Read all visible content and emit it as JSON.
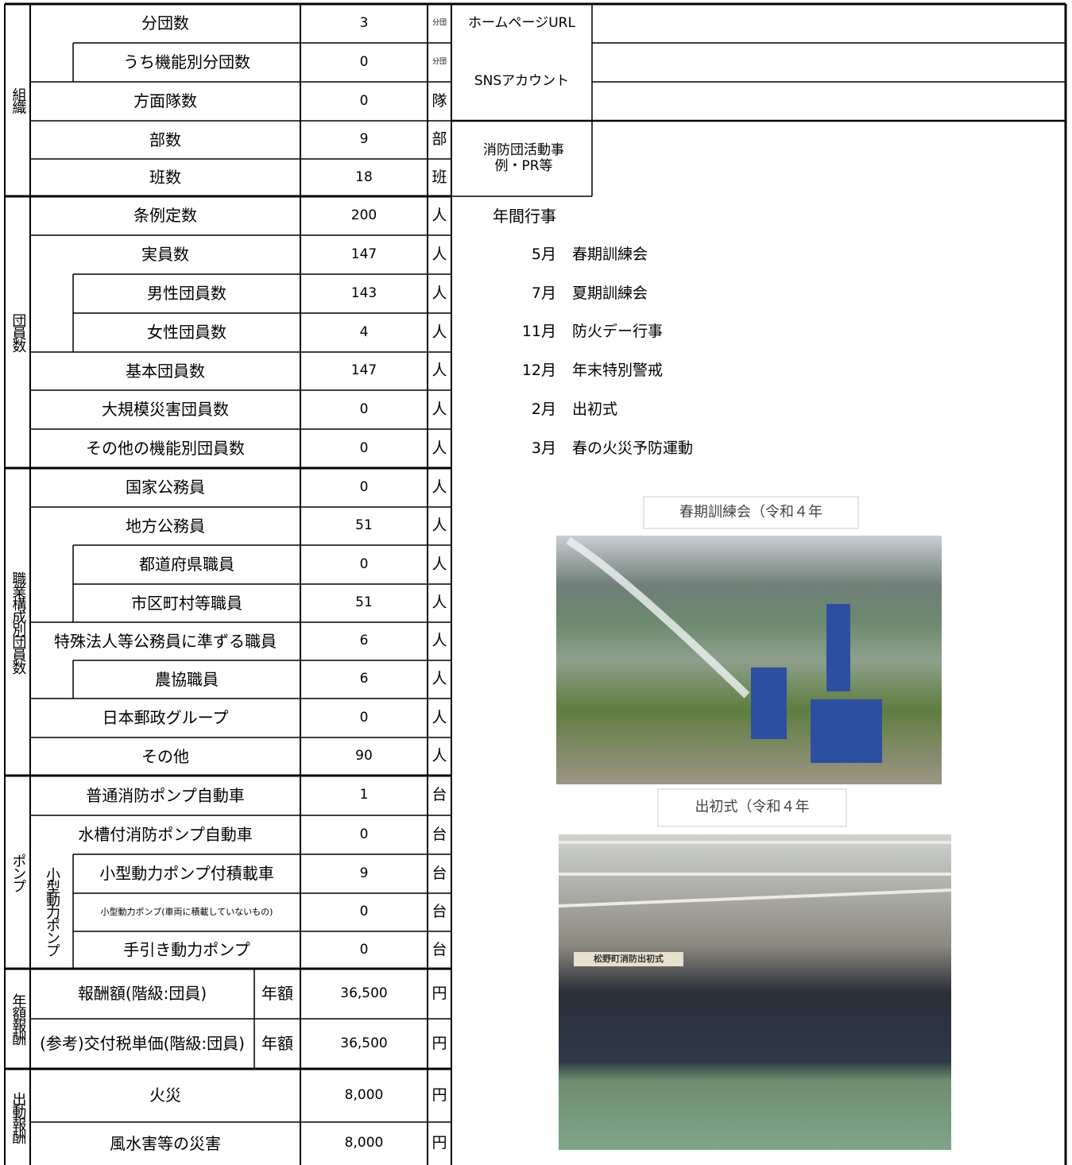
{
  "sections": [
    {
      "label": "組織",
      "rows": [
        {
          "label": "分団数",
          "value": "3",
          "unit": "分団"
        },
        {
          "label": "うち機能別分団数",
          "value": "0",
          "unit": "分団"
        },
        {
          "label": "方面隊数",
          "value": "0",
          "unit": "隊"
        },
        {
          "label": "部数",
          "value": "9",
          "unit": "部"
        },
        {
          "label": "班数",
          "value": "18",
          "unit": "班"
        }
      ]
    },
    {
      "label": "団員数",
      "rows": [
        {
          "label": "条例定数",
          "value": "200",
          "unit": "人"
        },
        {
          "label": "実員数",
          "value": "147",
          "unit": "人"
        },
        {
          "label": "男性団員数",
          "value": "143",
          "unit": "人"
        },
        {
          "label": "女性団員数",
          "value": "4",
          "unit": "人"
        },
        {
          "label": "基本団員数",
          "value": "147",
          "unit": "人"
        },
        {
          "label": "大規模災害団員数",
          "value": "0",
          "unit": "人"
        },
        {
          "label": "その他の機能別団員数",
          "value": "0",
          "unit": "人"
        }
      ]
    },
    {
      "label": "職業構成別団員数",
      "rows": [
        {
          "label": "国家公務員",
          "value": "0",
          "unit": "人"
        },
        {
          "label": "地方公務員",
          "value": "51",
          "unit": "人"
        },
        {
          "label": "都道府県職員",
          "value": "0",
          "unit": "人"
        },
        {
          "label": "市区町村等職員",
          "value": "51",
          "unit": "人"
        },
        {
          "label": "特殊法人等公務員に準ずる職員",
          "value": "6",
          "unit": "人"
        },
        {
          "label": "農協職員",
          "value": "6",
          "unit": "人"
        },
        {
          "label": "日本郵政グループ",
          "value": "0",
          "unit": "人"
        },
        {
          "label": "その他",
          "value": "90",
          "unit": "人"
        }
      ]
    },
    {
      "label": "ポンプ",
      "sub_label": "小型動力ポンプ",
      "rows": [
        {
          "label": "普通消防ポンプ自動車",
          "value": "1",
          "unit": "台"
        },
        {
          "label": "水槽付消防ポンプ自動車",
          "value": "0",
          "unit": "台"
        },
        {
          "label": "小型動力ポンプ付積載車",
          "value": "9",
          "unit": "台"
        },
        {
          "label": "小型動力ポンプ(車両に積載していないもの)",
          "value": "0",
          "unit": "台"
        },
        {
          "label": "手引き動力ポンプ",
          "value": "0",
          "unit": "台"
        }
      ]
    },
    {
      "label": "年額報酬",
      "rows": [
        {
          "label": "報酬額(階級:団員)",
          "period": "年額",
          "value": "36,500",
          "unit": "円"
        },
        {
          "label": "(参考)交付税単価(階級:団員)",
          "period": "年額",
          "value": "36,500",
          "unit": "円"
        }
      ]
    },
    {
      "label": "出動報酬",
      "rows": [
        {
          "label": "火災",
          "value": "8,000",
          "unit": "円"
        },
        {
          "label": "風水害等の災害",
          "value": "8,000",
          "unit": "円"
        }
      ]
    }
  ],
  "links": {
    "homepage_label": "ホームページURL",
    "sns_label": "SNSアカウント",
    "pr_label": "消防団活動事例・PR等"
  },
  "annual_events": {
    "title": "年間行事",
    "items": [
      {
        "month": "5月",
        "event": "春期訓練会"
      },
      {
        "month": "7月",
        "event": "夏期訓練会"
      },
      {
        "month": "11月",
        "event": "防火デー行事"
      },
      {
        "month": "12月",
        "event": "年末特別警戒"
      },
      {
        "month": "2月",
        "event": "出初式"
      },
      {
        "month": "3月",
        "event": "春の火災予防運動"
      }
    ]
  },
  "photos": [
    {
      "caption": "春期訓練会（令和４年"
    },
    {
      "caption": "出初式（令和４年",
      "banner": "松野町消防出初式"
    }
  ]
}
